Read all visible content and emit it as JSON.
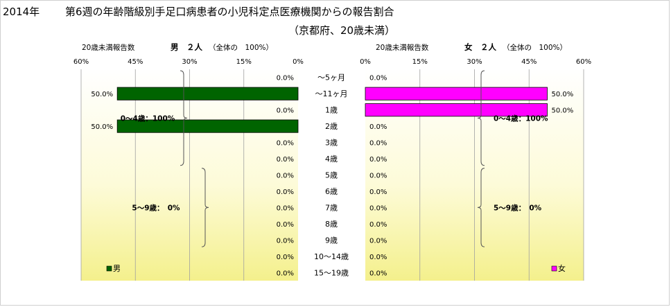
{
  "title": {
    "year": "2014年",
    "main": "第6週の年齢階級別手足口病患者の小児科定点医療機関からの報告割合",
    "sub": "（京都府、20歳未満）"
  },
  "chart_data": {
    "type": "bar",
    "orientation": "horizontal",
    "categories": [
      "～5ヶ月",
      "～11ヶ月",
      "1歳",
      "2歳",
      "3歳",
      "4歳",
      "5歳",
      "6歳",
      "7歳",
      "8歳",
      "9歳",
      "10～14歳",
      "15～19歳"
    ],
    "value_format": "percent",
    "panels": [
      {
        "side": "left",
        "header_label": "20歳未満報告数",
        "header_count": "男　２人",
        "header_note": "（全体の　100%）",
        "ticks": [
          "60%",
          "45%",
          "30%",
          "15%",
          "0%"
        ],
        "tick_values": [
          60,
          45,
          30,
          15,
          0
        ],
        "xlim": [
          0,
          60
        ],
        "reversed": true,
        "legend": "男",
        "legend_position": "bottom-left",
        "color": "#006400",
        "values": [
          0,
          50,
          0,
          50,
          0,
          0,
          0,
          0,
          0,
          0,
          0,
          0,
          0
        ],
        "labels": [
          "0.0%",
          "50.0%",
          "0.0%",
          "50.0%",
          "0.0%",
          "0.0%",
          "0.0%",
          "0.0%",
          "0.0%",
          "0.0%",
          "0.0%",
          "0.0%",
          "0.0%"
        ],
        "groups": [
          {
            "text": "0～4歳：100%",
            "from": 0,
            "to": 5
          },
          {
            "text": "5～9歳：　0%",
            "from": 6,
            "to": 10
          }
        ]
      },
      {
        "side": "right",
        "header_label": "20歳未満報告数",
        "header_count": "女　２人",
        "header_note": "（全体の　100%）",
        "ticks": [
          "0%",
          "15%",
          "30%",
          "45%",
          "60%"
        ],
        "tick_values": [
          0,
          15,
          30,
          45,
          60
        ],
        "xlim": [
          0,
          60
        ],
        "reversed": false,
        "legend": "女",
        "legend_position": "bottom-right",
        "color": "#ff00ff",
        "values": [
          0,
          50,
          50,
          0,
          0,
          0,
          0,
          0,
          0,
          0,
          0,
          0,
          0
        ],
        "labels": [
          "0.0%",
          "50.0%",
          "50.0%",
          "0.0%",
          "0.0%",
          "0.0%",
          "0.0%",
          "0.0%",
          "0.0%",
          "0.0%",
          "0.0%",
          "0.0%",
          "0.0%"
        ],
        "groups": [
          {
            "text": "0～4歳：100%",
            "from": 0,
            "to": 5
          },
          {
            "text": "5～9歳：　0%",
            "from": 6,
            "to": 10
          }
        ]
      }
    ]
  }
}
